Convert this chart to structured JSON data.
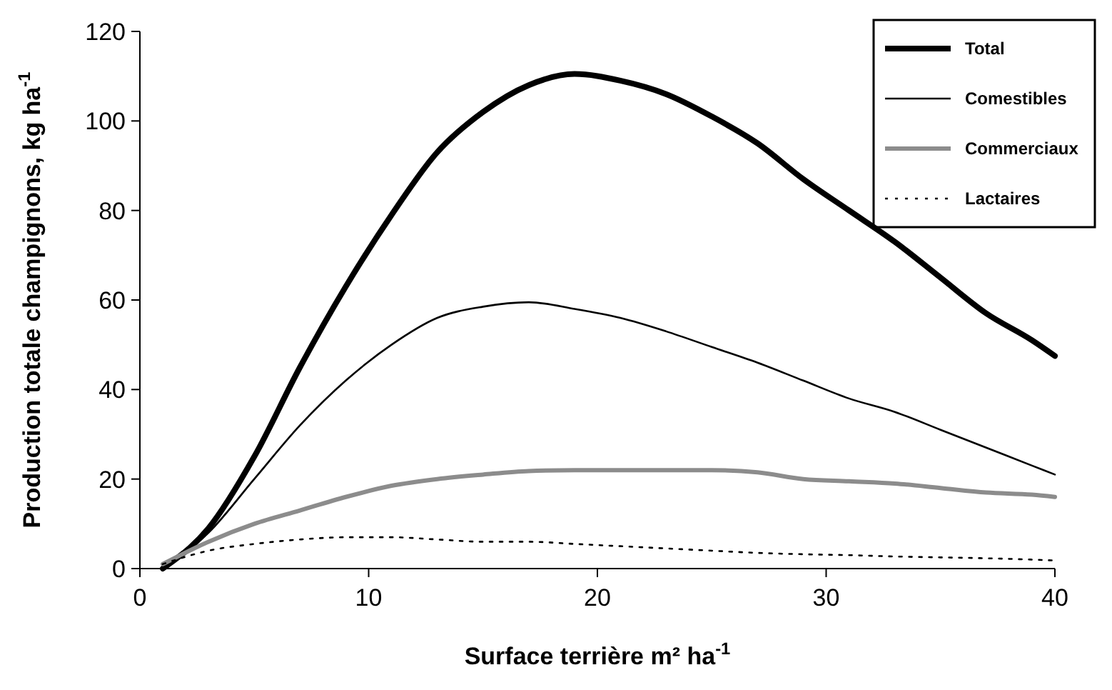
{
  "chart_data": {
    "type": "line",
    "xlabel": "Surface terrière m² ha$^{-1}$",
    "ylabel": "Production totale champignons, kg ha$^{-1}$",
    "x": [
      1,
      3,
      5,
      7,
      9,
      11,
      13,
      15,
      17,
      19,
      21,
      23,
      25,
      27,
      29,
      31,
      33,
      35,
      37,
      39,
      40
    ],
    "series": [
      {
        "name": "Total",
        "color": "#000000",
        "line_style": "solid",
        "values": [
          0,
          9,
          25,
          45,
          63,
          79,
          93,
          102,
          108,
          110.5,
          109,
          106,
          101,
          95,
          87,
          80,
          73,
          65,
          57,
          51,
          47.5
        ]
      },
      {
        "name": "Comestibles",
        "color": "#000000",
        "line_style": "solid",
        "values": [
          0,
          8,
          20,
          32,
          42,
          50,
          56,
          58.5,
          59.5,
          58,
          56,
          53,
          49.5,
          46,
          42,
          38,
          35,
          31,
          27,
          23,
          21
        ]
      },
      {
        "name": "Commerciaux",
        "color": "#8c8c8c",
        "line_style": "solid",
        "values": [
          1,
          6,
          10,
          13,
          16,
          18.5,
          20,
          21,
          21.8,
          22,
          22,
          22,
          22,
          21.5,
          20,
          19.5,
          19,
          18,
          17,
          16.5,
          16
        ]
      },
      {
        "name": "Lactaires",
        "color": "#000000",
        "line_style": "dotted",
        "values": [
          1,
          4,
          5.5,
          6.5,
          7,
          7,
          6.5,
          6,
          6,
          5.5,
          5,
          4.5,
          4,
          3.5,
          3.2,
          3,
          2.7,
          2.5,
          2.3,
          2,
          1.8
        ]
      }
    ],
    "xlim": [
      0,
      40
    ],
    "xticks": [
      0,
      10,
      20,
      30,
      40
    ],
    "ylim": [
      0,
      120
    ],
    "yticks": [
      0,
      20,
      40,
      60,
      80,
      100,
      120
    ],
    "grid": false,
    "legend": "top right"
  }
}
